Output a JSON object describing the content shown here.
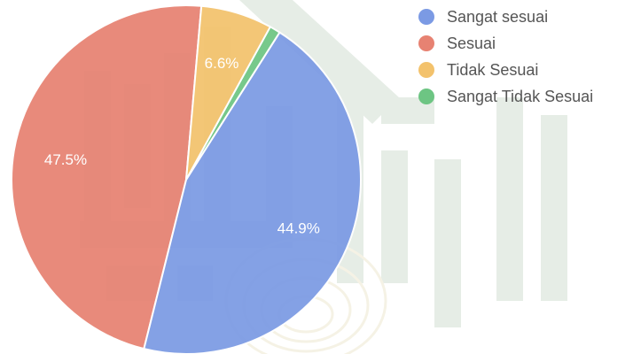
{
  "chart_data": {
    "type": "pie",
    "title": "",
    "categories": [
      "Sangat sesuai",
      "Sesuai",
      "Tidak Sesuai",
      "Sangat Tidak Sesuai"
    ],
    "values": [
      44.9,
      47.5,
      6.6,
      1.0
    ],
    "data_labels": [
      "44.9%",
      "47.5%",
      "6.6%",
      ""
    ],
    "colors": [
      "#7b9ae4",
      "#e78272",
      "#f3c26c",
      "#6dc583"
    ],
    "legend_position": "right"
  },
  "legend": {
    "items": [
      {
        "label": "Sangat sesuai",
        "color": "#7b9ae4"
      },
      {
        "label": "Sesuai",
        "color": "#e78272"
      },
      {
        "label": "Tidak Sesuai",
        "color": "#f3c26c"
      },
      {
        "label": "Sangat Tidak Sesuai",
        "color": "#6dc583"
      }
    ]
  }
}
